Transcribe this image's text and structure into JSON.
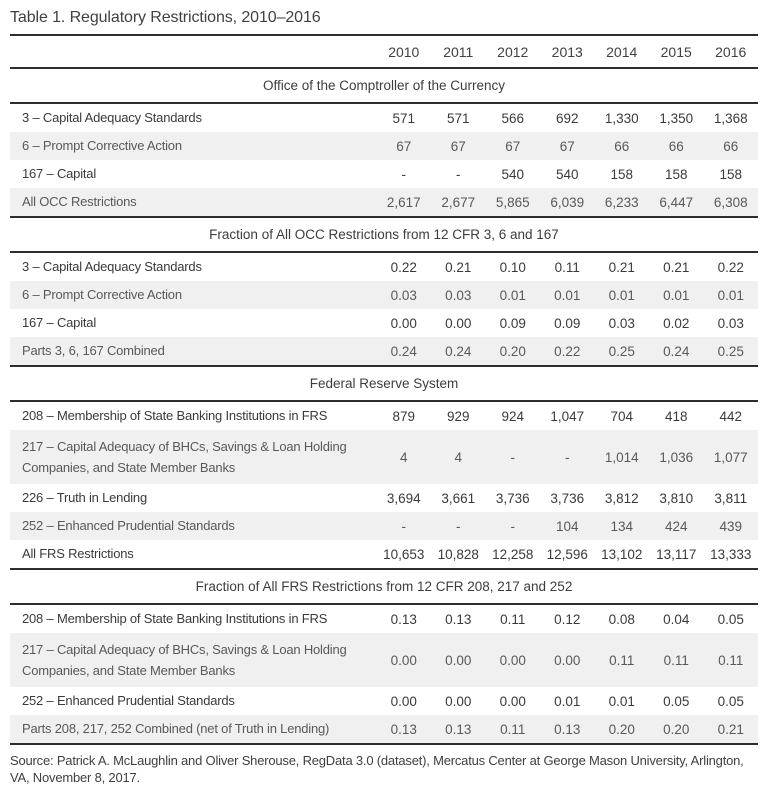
{
  "page": {
    "title": "Table 1. Regulatory Restrictions, 2010–2016",
    "source": "Source: Patrick A. McLaughlin and Oliver Sherouse, RegData 3.0 (dataset), Mercatus Center at George Mason University, Arlington, VA, November 8, 2017."
  },
  "colors": {
    "rule": "#2d2d2d",
    "shaded_row": "#f0f0f0",
    "text": "#3a3a3a",
    "shaded_text": "#595959"
  },
  "years": [
    "2010",
    "2011",
    "2012",
    "2013",
    "2014",
    "2015",
    "2016"
  ],
  "sections": [
    {
      "header": "Office of the Comptroller of the Currency",
      "rows": [
        {
          "label": "3 – Capital Adequacy Standards",
          "values": [
            "571",
            "571",
            "566",
            "692",
            "1,330",
            "1,350",
            "1,368"
          ]
        },
        {
          "label": "6 – Prompt Corrective Action",
          "values": [
            "67",
            "67",
            "67",
            "67",
            "66",
            "66",
            "66"
          ]
        },
        {
          "label": "167 – Capital",
          "values": [
            "-",
            "-",
            "540",
            "540",
            "158",
            "158",
            "158"
          ]
        },
        {
          "label": "All OCC Restrictions",
          "values": [
            "2,617",
            "2,677",
            "5,865",
            "6,039",
            "6,233",
            "6,447",
            "6,308"
          ]
        }
      ]
    },
    {
      "header": "Fraction of All OCC Restrictions from 12 CFR 3, 6 and 167",
      "rows": [
        {
          "label": "3 – Capital Adequacy Standards",
          "values": [
            "0.22",
            "0.21",
            "0.10",
            "0.11",
            "0.21",
            "0.21",
            "0.22"
          ]
        },
        {
          "label": "6 – Prompt Corrective Action",
          "values": [
            "0.03",
            "0.03",
            "0.01",
            "0.01",
            "0.01",
            "0.01",
            "0.01"
          ]
        },
        {
          "label": "167 – Capital",
          "values": [
            "0.00",
            "0.00",
            "0.09",
            "0.09",
            "0.03",
            "0.02",
            "0.03"
          ]
        },
        {
          "label": "Parts 3, 6, 167 Combined",
          "values": [
            "0.24",
            "0.24",
            "0.20",
            "0.22",
            "0.25",
            "0.24",
            "0.25"
          ]
        }
      ]
    },
    {
      "header": "Federal Reserve System",
      "rows": [
        {
          "label": "208 – Membership of State Banking Institutions in FRS",
          "values": [
            "879",
            "929",
            "924",
            "1,047",
            "704",
            "418",
            "442"
          ]
        },
        {
          "label": "217 – Capital Adequacy of BHCs, Savings & Loan Holding Companies, and State Member Banks",
          "values": [
            "4",
            "4",
            "-",
            "-",
            "1,014",
            "1,036",
            "1,077"
          ]
        },
        {
          "label": "226 – Truth in Lending",
          "values": [
            "3,694",
            "3,661",
            "3,736",
            "3,736",
            "3,812",
            "3,810",
            "3,811"
          ]
        },
        {
          "label": "252 – Enhanced Prudential Standards",
          "values": [
            "-",
            "-",
            "-",
            "104",
            "134",
            "424",
            "439"
          ]
        },
        {
          "label": "All FRS Restrictions",
          "values": [
            "10,653",
            "10,828",
            "12,258",
            "12,596",
            "13,102",
            "13,117",
            "13,333"
          ]
        }
      ]
    },
    {
      "header": "Fraction of All FRS Restrictions from 12 CFR 208, 217 and 252",
      "rows": [
        {
          "label": "208 – Membership of State Banking Institutions in FRS",
          "values": [
            "0.13",
            "0.13",
            "0.11",
            "0.12",
            "0.08",
            "0.04",
            "0.05"
          ]
        },
        {
          "label": "217 – Capital Adequacy of BHCs, Savings & Loan Holding Companies, and State Member Banks",
          "values": [
            "0.00",
            "0.00",
            "0.00",
            "0.00",
            "0.11",
            "0.11",
            "0.11"
          ]
        },
        {
          "label": "252 – Enhanced Prudential Standards",
          "values": [
            "0.00",
            "0.00",
            "0.00",
            "0.01",
            "0.01",
            "0.05",
            "0.05"
          ]
        },
        {
          "label": "Parts 208, 217, 252 Combined (net of Truth in Lending)",
          "values": [
            "0.13",
            "0.13",
            "0.11",
            "0.13",
            "0.20",
            "0.20",
            "0.21"
          ]
        }
      ]
    }
  ]
}
